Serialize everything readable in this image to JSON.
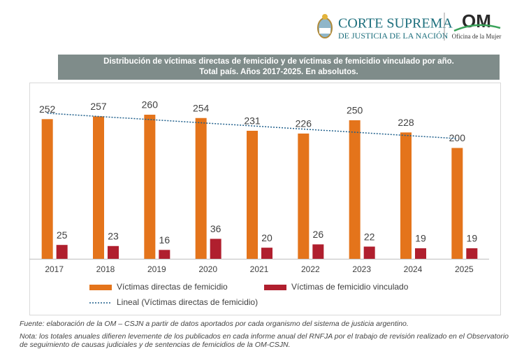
{
  "header": {
    "institution_line1": "CORTE SUPREMA",
    "institution_line2": "DE JUSTICIA DE LA NACIÓN",
    "office_logo": "OM",
    "office_name": "Oficina de la Mujer"
  },
  "chart_data": {
    "type": "bar",
    "title": "Distribución de víctimas directas de femicidio y de víctimas de femicidio vinculado por año.",
    "subtitle": "Total país. Años 2017-2025. En absolutos.",
    "categories": [
      "2017",
      "2018",
      "2019",
      "2020",
      "2021",
      "2022",
      "2023",
      "2024",
      "2025"
    ],
    "series": [
      {
        "name": "Víctimas directas de femicidio",
        "color": "#e4741b",
        "values": [
          252,
          257,
          260,
          254,
          231,
          226,
          250,
          228,
          200
        ],
        "trendline": {
          "name": "Lineal (Víctimas directas de femicidio)",
          "color": "#1f5f8b"
        }
      },
      {
        "name": "Víctimas de femicidio vinculado",
        "color": "#b01f2e",
        "values": [
          25,
          23,
          16,
          36,
          20,
          26,
          22,
          19,
          19
        ]
      }
    ],
    "data_labels": true
  },
  "notes": [
    "Fuente: elaboración de la OM – CSJN a partir de datos aportados por cada organismo del sistema de justicia argentino.",
    "Nota: los totales anuales difieren levemente de los publicados en cada informe anual del RNFJA por el trabajo de revisión realizado en el Observatorio de seguimiento de causas judiciales y de sentencias de femicidios de la OM-CSJN."
  ]
}
